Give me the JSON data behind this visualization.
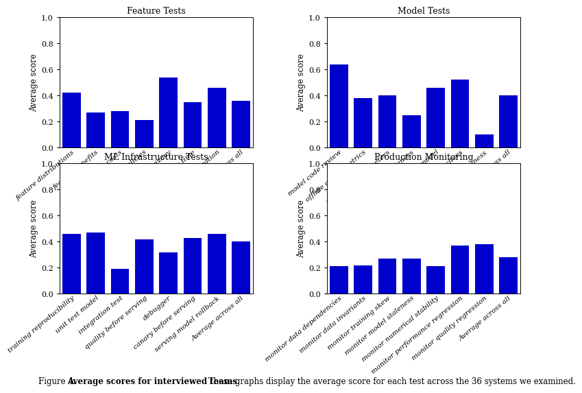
{
  "feature_tests": {
    "title": "Feature Tests",
    "labels": [
      "feature distributions",
      "feature benefits",
      "feature costs",
      "feature policies",
      "data privacy",
      "new feature time",
      "test feature creation",
      "Average across all"
    ],
    "values": [
      0.42,
      0.27,
      0.28,
      0.21,
      0.54,
      0.35,
      0.46,
      0.36
    ]
  },
  "model_tests": {
    "title": "Model Tests",
    "labels": [
      "model code review",
      "offline online metrics",
      "tune hyperparameters",
      "model staleness",
      "baseline model",
      "quality on slices",
      "inclusiveness",
      "Average across all"
    ],
    "values": [
      0.64,
      0.38,
      0.4,
      0.25,
      0.46,
      0.52,
      0.1,
      0.4
    ]
  },
  "ml_infra_tests": {
    "title": "ML Infrastructure Tests",
    "labels": [
      "training reproducibility",
      "unit test model",
      "integration test",
      "quality before serving",
      "debugger",
      "canary before serving",
      "serving model rollback",
      "Average across all"
    ],
    "values": [
      0.46,
      0.47,
      0.19,
      0.42,
      0.32,
      0.43,
      0.46,
      0.4
    ]
  },
  "production_monitoring": {
    "title": "Production Monitoring",
    "labels": [
      "monitor data dependencies",
      "monitor data invariants",
      "monitor training skew",
      "monitor model staleness",
      "monitor numerical stability",
      "monitor performance regression",
      "monitor quality regression",
      "Average across all"
    ],
    "values": [
      0.21,
      0.22,
      0.27,
      0.27,
      0.21,
      0.37,
      0.38,
      0.28
    ]
  },
  "bar_color": "#0000CC",
  "ylabel": "Average score",
  "ylim": [
    0.0,
    1.0
  ],
  "yticks": [
    0.0,
    0.2,
    0.4,
    0.6,
    0.8,
    1.0
  ],
  "figure_label": "Figure 4.",
  "caption_bold": "Average scores for interviewed teams.",
  "caption_normal": "These graphs display the average score for each test across the 36 systems we examined."
}
